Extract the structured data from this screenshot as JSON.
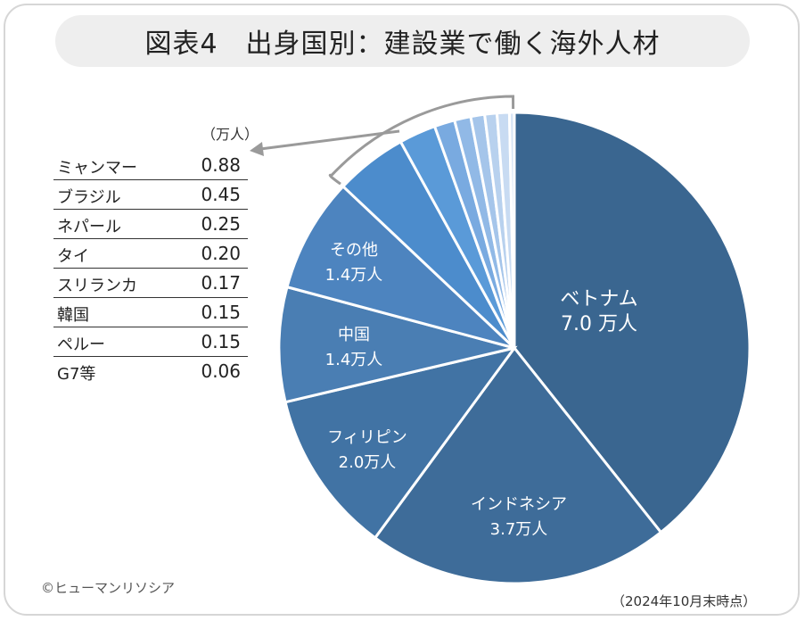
{
  "title": "図表4　出身国別：建設業で働く海外人材",
  "unit_label": "（万人）",
  "credit": "©ヒューマンリソシア",
  "as_of": "（2024年10月末時点）",
  "chart_data": {
    "type": "pie",
    "title": "図表4　出身国別：建設業で働く海外人材",
    "unit": "万人",
    "slices": [
      {
        "name": "ベトナム",
        "value": 7.0,
        "label_line1": "ベトナム",
        "label_line2": "7.0 万人",
        "color": "#3a6690"
      },
      {
        "name": "インドネシア",
        "value": 3.7,
        "label_line1": "インドネシア",
        "label_line2": "3.7万人",
        "color": "#3e6c99"
      },
      {
        "name": "フィリピン",
        "value": 2.0,
        "label_line1": "フィリピン",
        "label_line2": "2.0万人",
        "color": "#4173a4"
      },
      {
        "name": "中国",
        "value": 1.4,
        "label_line1": "中国",
        "label_line2": "1.4万人",
        "color": "#4a7eb3"
      },
      {
        "name": "その他",
        "value": 1.4,
        "label_line1": "その他",
        "label_line2": "1.4万人",
        "color": "#4d84bf"
      },
      {
        "name": "ミャンマー",
        "value": 0.88,
        "color": "#4c8ccc"
      },
      {
        "name": "ブラジル",
        "value": 0.45,
        "color": "#5a9ad8"
      },
      {
        "name": "ネパール",
        "value": 0.25,
        "color": "#79aae0"
      },
      {
        "name": "タイ",
        "value": 0.2,
        "color": "#91b9e6"
      },
      {
        "name": "スリランカ",
        "value": 0.17,
        "color": "#a5c5ea"
      },
      {
        "name": "韓国",
        "value": 0.15,
        "color": "#b8d1ee"
      },
      {
        "name": "ペルー",
        "value": 0.15,
        "color": "#c8dbf2"
      },
      {
        "name": "G7等",
        "value": 0.06,
        "color": "#d8e5f5"
      }
    ],
    "table": [
      {
        "label": "ミャンマー",
        "value": "0.88"
      },
      {
        "label": "ブラジル",
        "value": "0.45"
      },
      {
        "label": "ネパール",
        "value": "0.25"
      },
      {
        "label": "タイ",
        "value": "0.20"
      },
      {
        "label": "スリランカ",
        "value": "0.17"
      },
      {
        "label": "韓国",
        "value": "0.15"
      },
      {
        "label": "ペルー",
        "value": "0.15"
      },
      {
        "label": "G7等",
        "value": "0.06"
      }
    ]
  }
}
